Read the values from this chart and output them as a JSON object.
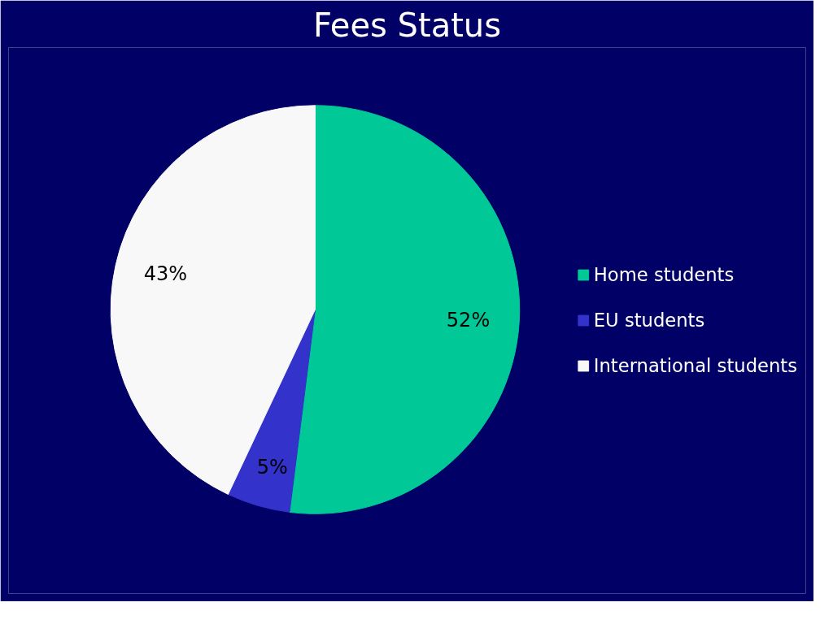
{
  "chart_data": {
    "type": "pie",
    "title": "Fees Status",
    "categories": [
      "Home students",
      "EU students",
      "International students"
    ],
    "values": [
      52,
      5,
      43
    ],
    "colors": [
      "#00c896",
      "#3333cc",
      "#f8f8f8"
    ],
    "value_labels": [
      "52%",
      "5%",
      "43%"
    ],
    "legend": "right"
  }
}
